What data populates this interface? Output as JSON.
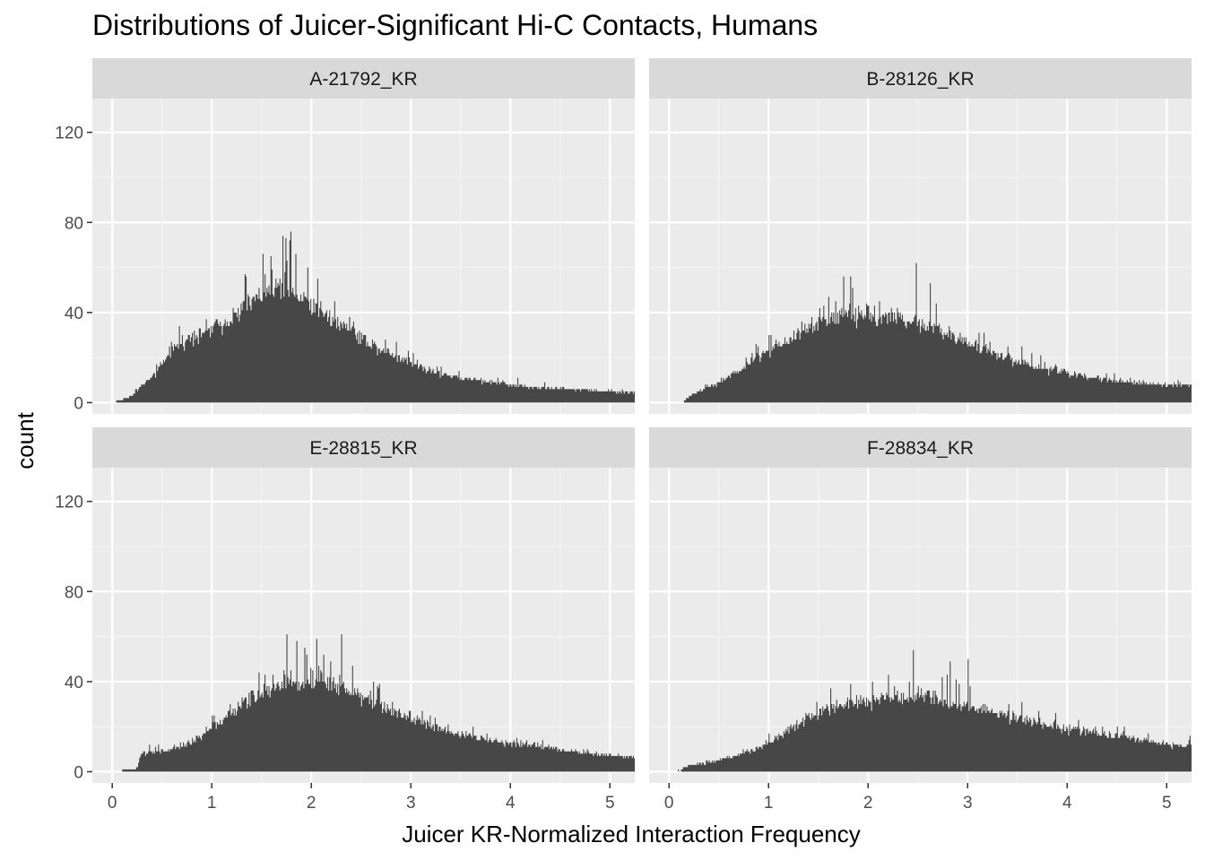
{
  "chart_data": {
    "type": "bar",
    "title": "Distributions of Juicer-Significant Hi-C Contacts, Humans",
    "xlabel": "Juicer KR-Normalized Interaction Frequency",
    "ylabel": "count",
    "xlim": [
      -0.2,
      5.25
    ],
    "ylim": [
      -5,
      135
    ],
    "x_ticks": [
      0,
      1,
      2,
      3,
      4,
      5
    ],
    "x_tick_labels": [
      "0",
      "1",
      "2",
      "3",
      "4",
      "5"
    ],
    "y_ticks": [
      0,
      40,
      80,
      120
    ],
    "y_tick_labels": [
      "0",
      "40",
      "80",
      "120"
    ],
    "bin_width": 0.01,
    "facets": [
      {
        "name": "A-21792_KR",
        "envelope": [
          [
            0.0,
            0
          ],
          [
            0.08,
            1
          ],
          [
            0.2,
            3
          ],
          [
            0.3,
            8
          ],
          [
            0.4,
            11
          ],
          [
            0.5,
            17
          ],
          [
            0.65,
            25
          ],
          [
            0.8,
            30
          ],
          [
            1.0,
            33
          ],
          [
            1.2,
            38
          ],
          [
            1.4,
            45
          ],
          [
            1.6,
            49
          ],
          [
            1.75,
            50
          ],
          [
            1.9,
            47
          ],
          [
            2.1,
            41
          ],
          [
            2.3,
            35
          ],
          [
            2.5,
            29
          ],
          [
            2.7,
            24
          ],
          [
            2.9,
            20
          ],
          [
            3.1,
            16
          ],
          [
            3.3,
            13
          ],
          [
            3.5,
            11
          ],
          [
            3.8,
            9
          ],
          [
            4.2,
            7
          ],
          [
            4.6,
            6
          ],
          [
            5.0,
            5
          ],
          [
            5.25,
            4.5
          ]
        ],
        "noise": 0.18,
        "peaks": [
          [
            1.51,
            66
          ],
          [
            1.59,
            65
          ],
          [
            1.71,
            74
          ],
          [
            1.74,
            73
          ],
          [
            1.78,
            72
          ],
          [
            1.79,
            76
          ],
          [
            1.84,
            66
          ],
          [
            1.96,
            60
          ],
          [
            2.06,
            55
          ]
        ]
      },
      {
        "name": "B-28126_KR",
        "envelope": [
          [
            0.14,
            0
          ],
          [
            0.2,
            3
          ],
          [
            0.3,
            5
          ],
          [
            0.5,
            9
          ],
          [
            0.7,
            14
          ],
          [
            0.9,
            20
          ],
          [
            1.0,
            23
          ],
          [
            1.2,
            28
          ],
          [
            1.4,
            33
          ],
          [
            1.6,
            37
          ],
          [
            1.8,
            39
          ],
          [
            2.0,
            39
          ],
          [
            2.2,
            38
          ],
          [
            2.4,
            37
          ],
          [
            2.6,
            34
          ],
          [
            2.8,
            30
          ],
          [
            3.0,
            27
          ],
          [
            3.2,
            23
          ],
          [
            3.4,
            20
          ],
          [
            3.6,
            17
          ],
          [
            3.8,
            15
          ],
          [
            4.0,
            13
          ],
          [
            4.3,
            11
          ],
          [
            4.6,
            9
          ],
          [
            5.0,
            8
          ],
          [
            5.25,
            7.5
          ]
        ],
        "noise": 0.18,
        "peaks": [
          [
            1.75,
            56
          ],
          [
            1.82,
            56
          ],
          [
            2.48,
            62
          ],
          [
            2.62,
            53
          ]
        ]
      },
      {
        "name": "E-28815_KR",
        "envelope": [
          [
            0.0,
            0.3
          ],
          [
            0.1,
            0.5
          ],
          [
            0.2,
            1
          ],
          [
            0.25,
            1.5
          ],
          [
            0.28,
            6
          ],
          [
            0.3,
            8
          ],
          [
            0.5,
            9
          ],
          [
            0.7,
            11
          ],
          [
            0.9,
            16
          ],
          [
            1.1,
            23
          ],
          [
            1.3,
            30
          ],
          [
            1.5,
            35
          ],
          [
            1.7,
            39
          ],
          [
            1.9,
            41
          ],
          [
            2.1,
            40
          ],
          [
            2.3,
            38
          ],
          [
            2.5,
            34
          ],
          [
            2.7,
            30
          ],
          [
            2.9,
            26
          ],
          [
            3.1,
            22
          ],
          [
            3.3,
            19
          ],
          [
            3.5,
            17
          ],
          [
            3.8,
            14
          ],
          [
            4.2,
            12
          ],
          [
            4.6,
            9
          ],
          [
            5.0,
            7
          ],
          [
            5.25,
            6.5
          ]
        ],
        "noise": 0.18,
        "peaks": [
          [
            1.75,
            61
          ],
          [
            1.85,
            58
          ],
          [
            2.05,
            59
          ],
          [
            2.3,
            61
          ]
        ]
      },
      {
        "name": "F-28834_KR",
        "envelope": [
          [
            -0.15,
            0
          ],
          [
            0.05,
            0.3
          ],
          [
            0.12,
            0.5
          ],
          [
            0.15,
            2
          ],
          [
            0.2,
            3
          ],
          [
            0.4,
            4
          ],
          [
            0.6,
            6
          ],
          [
            0.8,
            9
          ],
          [
            1.0,
            13
          ],
          [
            1.2,
            19
          ],
          [
            1.4,
            24
          ],
          [
            1.6,
            28
          ],
          [
            1.8,
            31
          ],
          [
            2.0,
            32
          ],
          [
            2.2,
            33
          ],
          [
            2.4,
            33
          ],
          [
            2.6,
            33
          ],
          [
            2.8,
            31
          ],
          [
            3.0,
            29
          ],
          [
            3.2,
            27
          ],
          [
            3.4,
            25
          ],
          [
            3.6,
            23
          ],
          [
            3.8,
            21
          ],
          [
            4.0,
            19
          ],
          [
            4.3,
            17
          ],
          [
            4.6,
            15
          ],
          [
            5.0,
            12
          ],
          [
            5.25,
            11
          ]
        ],
        "noise": 0.18,
        "peaks": [
          [
            2.45,
            54
          ],
          [
            2.82,
            49
          ],
          [
            3.0,
            50
          ]
        ]
      }
    ]
  }
}
